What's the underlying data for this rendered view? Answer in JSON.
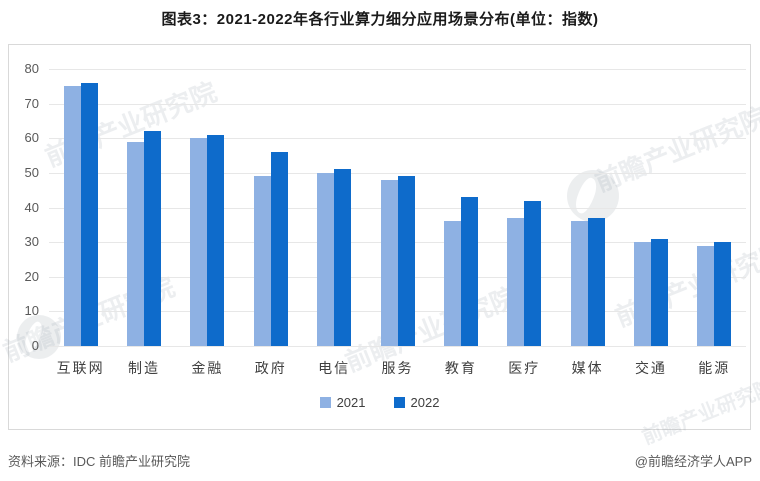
{
  "title": "图表3：2021-2022年各行业算力细分应用场景分布(单位：指数)",
  "chart_data": {
    "type": "bar",
    "title": "图表3：2021-2022年各行业算力细分应用场景分布(单位：指数)",
    "unit": "指数",
    "categories": [
      "互联网",
      "制造",
      "金融",
      "政府",
      "电信",
      "服务",
      "教育",
      "医疗",
      "媒体",
      "交通",
      "能源"
    ],
    "series": [
      {
        "name": "2021",
        "color": "#8EB1E3",
        "values": [
          75,
          59,
          60,
          49,
          50,
          48,
          36,
          37,
          36,
          30,
          29
        ]
      },
      {
        "name": "2022",
        "color": "#0E6BCB",
        "values": [
          76,
          62,
          61,
          56,
          51,
          49,
          43,
          42,
          37,
          31,
          30
        ]
      }
    ],
    "ylim": [
      0,
      80
    ],
    "yticks": [
      0,
      10,
      20,
      30,
      40,
      50,
      60,
      70,
      80
    ],
    "grid": true,
    "legend_position": "bottom",
    "xlabel": "",
    "ylabel": ""
  },
  "footer": {
    "source": "资料来源：IDC 前瞻产业研究院",
    "credit": "@前瞻经济学人APP"
  },
  "watermark": {
    "text": "前瞻产业研究院",
    "logo": "qianzhan-swoosh-logo"
  }
}
